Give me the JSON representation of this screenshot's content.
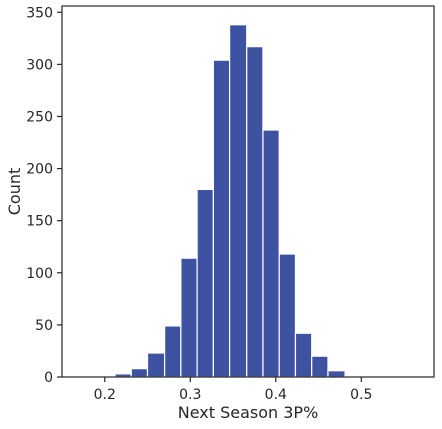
{
  "chart_data": {
    "type": "bar",
    "xlabel": "Next Season 3P%",
    "ylabel": "Count",
    "xlim": [
      0.15,
      0.585
    ],
    "ylim": [
      0,
      356
    ],
    "bar_color": "#3d52a1",
    "grid": false,
    "xticks": [
      0.2,
      0.3,
      0.4,
      0.5
    ],
    "xtick_labels": [
      "0.2",
      "0.3",
      "0.4",
      "0.5"
    ],
    "yticks": [
      0,
      50,
      100,
      150,
      200,
      250,
      300,
      350
    ],
    "ytick_labels": [
      "0",
      "50",
      "100",
      "150",
      "200",
      "250",
      "300",
      "350"
    ],
    "bins": [
      {
        "x0": 0.212,
        "x1": 0.231,
        "count": 3
      },
      {
        "x0": 0.231,
        "x1": 0.25,
        "count": 8
      },
      {
        "x0": 0.25,
        "x1": 0.27,
        "count": 23
      },
      {
        "x0": 0.27,
        "x1": 0.289,
        "count": 49
      },
      {
        "x0": 0.289,
        "x1": 0.308,
        "count": 114
      },
      {
        "x0": 0.308,
        "x1": 0.327,
        "count": 180
      },
      {
        "x0": 0.327,
        "x1": 0.346,
        "count": 304
      },
      {
        "x0": 0.346,
        "x1": 0.366,
        "count": 338
      },
      {
        "x0": 0.366,
        "x1": 0.385,
        "count": 317
      },
      {
        "x0": 0.385,
        "x1": 0.404,
        "count": 237
      },
      {
        "x0": 0.404,
        "x1": 0.423,
        "count": 118
      },
      {
        "x0": 0.423,
        "x1": 0.442,
        "count": 42
      },
      {
        "x0": 0.442,
        "x1": 0.461,
        "count": 20
      },
      {
        "x0": 0.461,
        "x1": 0.481,
        "count": 6
      },
      {
        "x0": 0.481,
        "x1": 0.5,
        "count": 1
      }
    ]
  }
}
